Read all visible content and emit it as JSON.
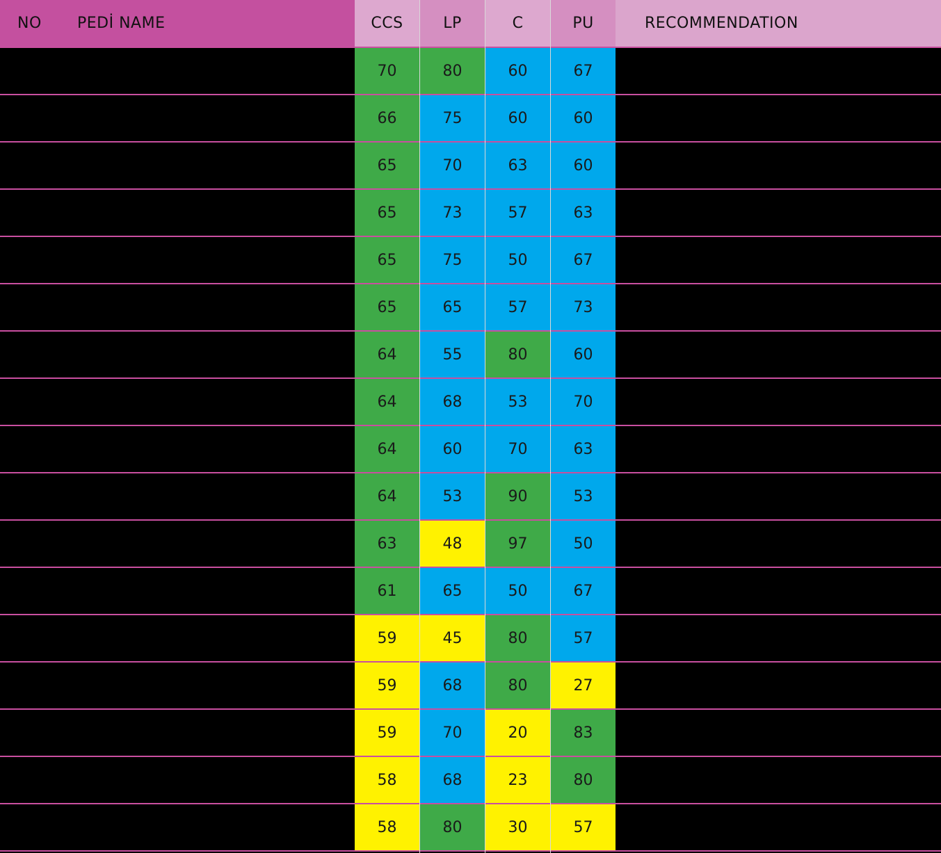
{
  "header": {
    "no": "NO",
    "name": "PEDİ NAME",
    "ccs": "CCS",
    "lp": "LP",
    "c": "C",
    "pu": "PU",
    "recommendation": "RECOMMENDATION"
  },
  "header_colors": {
    "left": "#c4509f",
    "ccs": "#dda8cf",
    "lp": "#d58fc1",
    "c": "#dda8cf",
    "pu": "#d58fc1",
    "recommendation": "#dba5cc",
    "divider": "#c94fa0"
  },
  "cell_colors": {
    "green": "#3faa48",
    "blue": "#00a8ec",
    "yellow": "#fff200"
  },
  "rows": [
    {
      "no": "",
      "name": "",
      "recommendation": "",
      "ccs": {
        "value": "70",
        "color": "green"
      },
      "lp": {
        "value": "80",
        "color": "green"
      },
      "c": {
        "value": "60",
        "color": "blue"
      },
      "pu": {
        "value": "67",
        "color": "blue"
      }
    },
    {
      "no": "",
      "name": "",
      "recommendation": "",
      "ccs": {
        "value": "66",
        "color": "green"
      },
      "lp": {
        "value": "75",
        "color": "blue"
      },
      "c": {
        "value": "60",
        "color": "blue"
      },
      "pu": {
        "value": "60",
        "color": "blue"
      }
    },
    {
      "no": "",
      "name": "",
      "recommendation": "",
      "ccs": {
        "value": "65",
        "color": "green"
      },
      "lp": {
        "value": "70",
        "color": "blue"
      },
      "c": {
        "value": "63",
        "color": "blue"
      },
      "pu": {
        "value": "60",
        "color": "blue"
      }
    },
    {
      "no": "",
      "name": "",
      "recommendation": "",
      "ccs": {
        "value": "65",
        "color": "green"
      },
      "lp": {
        "value": "73",
        "color": "blue"
      },
      "c": {
        "value": "57",
        "color": "blue"
      },
      "pu": {
        "value": "63",
        "color": "blue"
      }
    },
    {
      "no": "",
      "name": "",
      "recommendation": "",
      "ccs": {
        "value": "65",
        "color": "green"
      },
      "lp": {
        "value": "75",
        "color": "blue"
      },
      "c": {
        "value": "50",
        "color": "blue"
      },
      "pu": {
        "value": "67",
        "color": "blue"
      }
    },
    {
      "no": "",
      "name": "",
      "recommendation": "",
      "ccs": {
        "value": "65",
        "color": "green"
      },
      "lp": {
        "value": "65",
        "color": "blue"
      },
      "c": {
        "value": "57",
        "color": "blue"
      },
      "pu": {
        "value": "73",
        "color": "blue"
      }
    },
    {
      "no": "",
      "name": "",
      "recommendation": "",
      "ccs": {
        "value": "64",
        "color": "green"
      },
      "lp": {
        "value": "55",
        "color": "blue"
      },
      "c": {
        "value": "80",
        "color": "green"
      },
      "pu": {
        "value": "60",
        "color": "blue"
      }
    },
    {
      "no": "",
      "name": "",
      "recommendation": "",
      "ccs": {
        "value": "64",
        "color": "green"
      },
      "lp": {
        "value": "68",
        "color": "blue"
      },
      "c": {
        "value": "53",
        "color": "blue"
      },
      "pu": {
        "value": "70",
        "color": "blue"
      }
    },
    {
      "no": "",
      "name": "",
      "recommendation": "",
      "ccs": {
        "value": "64",
        "color": "green"
      },
      "lp": {
        "value": "60",
        "color": "blue"
      },
      "c": {
        "value": "70",
        "color": "blue"
      },
      "pu": {
        "value": "63",
        "color": "blue"
      }
    },
    {
      "no": "",
      "name": "",
      "recommendation": "",
      "ccs": {
        "value": "64",
        "color": "green"
      },
      "lp": {
        "value": "53",
        "color": "blue"
      },
      "c": {
        "value": "90",
        "color": "green"
      },
      "pu": {
        "value": "53",
        "color": "blue"
      }
    },
    {
      "no": "",
      "name": "",
      "recommendation": "",
      "ccs": {
        "value": "63",
        "color": "green"
      },
      "lp": {
        "value": "48",
        "color": "yellow"
      },
      "c": {
        "value": "97",
        "color": "green"
      },
      "pu": {
        "value": "50",
        "color": "blue"
      }
    },
    {
      "no": "",
      "name": "",
      "recommendation": "",
      "ccs": {
        "value": "61",
        "color": "green"
      },
      "lp": {
        "value": "65",
        "color": "blue"
      },
      "c": {
        "value": "50",
        "color": "blue"
      },
      "pu": {
        "value": "67",
        "color": "blue"
      }
    },
    {
      "no": "",
      "name": "",
      "recommendation": "",
      "ccs": {
        "value": "59",
        "color": "yellow"
      },
      "lp": {
        "value": "45",
        "color": "yellow"
      },
      "c": {
        "value": "80",
        "color": "green"
      },
      "pu": {
        "value": "57",
        "color": "blue"
      }
    },
    {
      "no": "",
      "name": "",
      "recommendation": "",
      "ccs": {
        "value": "59",
        "color": "yellow"
      },
      "lp": {
        "value": "68",
        "color": "blue"
      },
      "c": {
        "value": "80",
        "color": "green"
      },
      "pu": {
        "value": "27",
        "color": "yellow"
      }
    },
    {
      "no": "",
      "name": "",
      "recommendation": "",
      "ccs": {
        "value": "59",
        "color": "yellow"
      },
      "lp": {
        "value": "70",
        "color": "blue"
      },
      "c": {
        "value": "20",
        "color": "yellow"
      },
      "pu": {
        "value": "83",
        "color": "green"
      }
    },
    {
      "no": "",
      "name": "",
      "recommendation": "",
      "ccs": {
        "value": "58",
        "color": "yellow"
      },
      "lp": {
        "value": "68",
        "color": "blue"
      },
      "c": {
        "value": "23",
        "color": "yellow"
      },
      "pu": {
        "value": "80",
        "color": "green"
      }
    },
    {
      "no": "",
      "name": "",
      "recommendation": "",
      "ccs": {
        "value": "58",
        "color": "yellow"
      },
      "lp": {
        "value": "80",
        "color": "green"
      },
      "c": {
        "value": "30",
        "color": "yellow"
      },
      "pu": {
        "value": "57",
        "color": "yellow"
      }
    }
  ]
}
